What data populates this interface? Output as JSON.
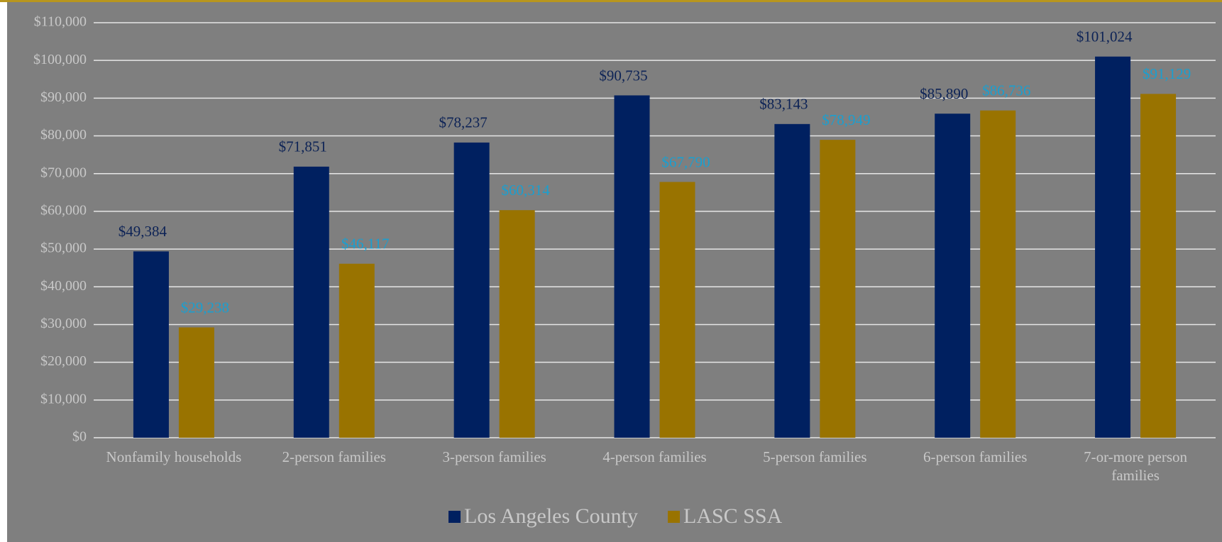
{
  "chart_data": {
    "type": "bar",
    "categories": [
      "Nonfamily households",
      "2-person families",
      "3-person families",
      "4-person families",
      "5-person families",
      "6-person families",
      "7-or-more person families"
    ],
    "series": [
      {
        "name": "Los Angeles County",
        "color": "#002060",
        "label_color": "#0d2356",
        "values": [
          49384,
          71851,
          78237,
          90735,
          83143,
          85890,
          101024
        ],
        "value_labels": [
          "$49,384",
          "$71,851",
          "$78,237",
          "$90,735",
          "$83,143",
          "$85,890",
          "$101,024"
        ]
      },
      {
        "name": "LASC SSA",
        "color": "#997300",
        "label_color": "#1a9fd0",
        "values": [
          29238,
          46117,
          60314,
          67790,
          78949,
          86736,
          91129
        ],
        "value_labels": [
          "$29,238",
          "$46,117",
          "$60,314",
          "$67,790",
          "$78,949",
          "$86,736",
          "$91,129"
        ]
      }
    ],
    "ylim": [
      0,
      110000
    ],
    "yticks": [
      {
        "value": 0,
        "label": "$0"
      },
      {
        "value": 10000,
        "label": "$10,000"
      },
      {
        "value": 20000,
        "label": "$20,000"
      },
      {
        "value": 30000,
        "label": "$30,000"
      },
      {
        "value": 40000,
        "label": "$40,000"
      },
      {
        "value": 50000,
        "label": "$50,000"
      },
      {
        "value": 60000,
        "label": "$60,000"
      },
      {
        "value": 70000,
        "label": "$70,000"
      },
      {
        "value": 80000,
        "label": "$80,000"
      },
      {
        "value": 90000,
        "label": "$90,000"
      },
      {
        "value": 100000,
        "label": "$100,000"
      },
      {
        "value": 110000,
        "label": "$110,000"
      }
    ],
    "grid": true,
    "legend": "bottom"
  }
}
